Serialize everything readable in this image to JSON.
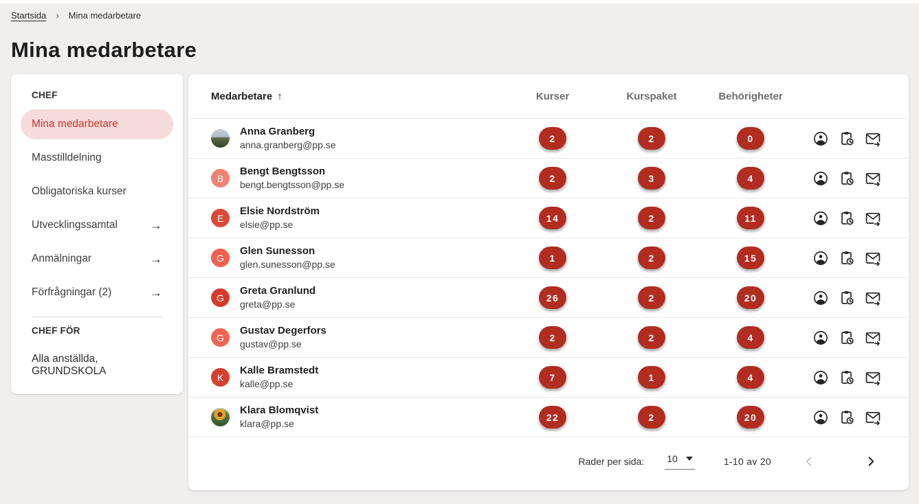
{
  "breadcrumb": {
    "home": "Startsida",
    "separator": "›",
    "current": "Mina medarbetare"
  },
  "page": {
    "title": "Mina medarbetare"
  },
  "sidebar": {
    "chef_title": "CHEF",
    "items": [
      {
        "label": "Mina medarbetare",
        "active": true,
        "arrow": false
      },
      {
        "label": "Masstilldelning",
        "active": false,
        "arrow": false
      },
      {
        "label": "Obligatoriska kurser",
        "active": false,
        "arrow": false
      },
      {
        "label": "Utvecklingssamtal",
        "active": false,
        "arrow": true
      },
      {
        "label": "Anmälningar",
        "active": false,
        "arrow": true
      },
      {
        "label": "Förfrågningar (2)",
        "active": false,
        "arrow": true
      }
    ],
    "chef_for_title": "CHEF FÖR",
    "chef_for_item": "Alla anställda, GRUNDSKOLA"
  },
  "table": {
    "headers": {
      "medarbetare": "Medarbetare",
      "kurser": "Kurser",
      "kurspaket": "Kurspaket",
      "behorigheter": "Behörigheter"
    },
    "sort_arrow": "↑",
    "row_icons": [
      "account-icon",
      "clipboard-clock-icon",
      "mail-send-icon"
    ],
    "rows": [
      {
        "name": "Anna Granberg",
        "email": "anna.granberg@pp.se",
        "kurser": "2",
        "kurspaket": "2",
        "behorigheter": "0",
        "avatar_type": "photo-landscape"
      },
      {
        "name": "Bengt Bengtsson",
        "email": "bengt.bengtsson@pp.se",
        "kurser": "2",
        "kurspaket": "3",
        "behorigheter": "4",
        "avatar_type": "initial",
        "initial": "B",
        "avatar_color": "#f0806f"
      },
      {
        "name": "Elsie Nordström",
        "email": "elsie@pp.se",
        "kurser": "14",
        "kurspaket": "2",
        "behorigheter": "11",
        "avatar_type": "initial",
        "initial": "E",
        "avatar_color": "#d94a38"
      },
      {
        "name": "Glen Sunesson",
        "email": "glen.sunesson@pp.se",
        "kurser": "1",
        "kurspaket": "2",
        "behorigheter": "15",
        "avatar_type": "initial",
        "initial": "G",
        "avatar_color": "#f2604d"
      },
      {
        "name": "Greta Granlund",
        "email": "greta@pp.se",
        "kurser": "26",
        "kurspaket": "2",
        "behorigheter": "20",
        "avatar_type": "initial",
        "initial": "G",
        "avatar_color": "#d63b2a"
      },
      {
        "name": "Gustav Degerfors",
        "email": "gustav@pp.se",
        "kurser": "2",
        "kurspaket": "2",
        "behorigheter": "4",
        "avatar_type": "initial",
        "initial": "G",
        "avatar_color": "#ef6553"
      },
      {
        "name": "Kalle Bramstedt",
        "email": "kalle@pp.se",
        "kurser": "7",
        "kurspaket": "1",
        "behorigheter": "4",
        "avatar_type": "initial",
        "initial": "K",
        "avatar_color": "#d63f2d"
      },
      {
        "name": "Klara Blomqvist",
        "email": "klara@pp.se",
        "kurser": "22",
        "kurspaket": "2",
        "behorigheter": "20",
        "avatar_type": "photo-flower"
      }
    ]
  },
  "pagination": {
    "rows_per_page_label": "Rader per sida:",
    "rows_per_page_value": "10",
    "range_label": "1-10 av 20"
  },
  "colors": {
    "badge": "#b22c20",
    "active_item_bg": "#f5dcdb",
    "active_item_text": "#c9372c",
    "page_bg": "#f1efee"
  }
}
